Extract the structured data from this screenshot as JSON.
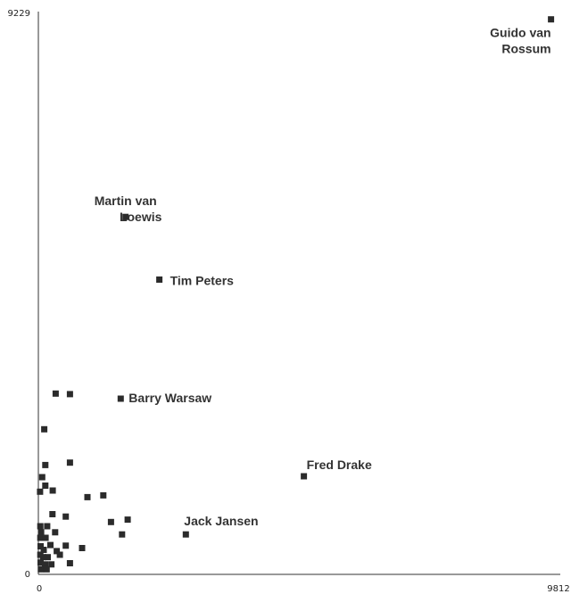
{
  "chart_data": {
    "type": "scatter",
    "title": "",
    "xlabel": "",
    "ylabel": "",
    "xlim": [
      0,
      9812
    ],
    "ylim": [
      0,
      9229
    ],
    "x_ticks": [
      "0",
      "9812"
    ],
    "y_ticks": [
      "0",
      "9229"
    ],
    "grid": false,
    "marker": "square",
    "marker_color": "#2b2b2b",
    "labeled_points": [
      {
        "label": "Guido van Rossum",
        "lines": [
          "Guido van",
          "Rossum"
        ],
        "x": 9670,
        "y": 9115
      },
      {
        "label": "Martin van Loewis",
        "lines": [
          "Martin van",
          "Loewis"
        ],
        "x": 1630,
        "y": 5855
      },
      {
        "label": "Tim Peters",
        "lines": [
          "Tim Peters"
        ],
        "x": 2270,
        "y": 4820
      },
      {
        "label": "Barry Warsaw",
        "lines": [
          "Barry Warsaw"
        ],
        "x": 1540,
        "y": 2855
      },
      {
        "label": "Fred Drake",
        "lines": [
          "Fred Drake"
        ],
        "x": 5000,
        "y": 1575
      },
      {
        "label": "Jack Jansen",
        "lines": [
          "Jack Jansen"
        ],
        "x": 2770,
        "y": 615
      }
    ],
    "points": [
      {
        "x": 310,
        "y": 2940
      },
      {
        "x": 580,
        "y": 2930
      },
      {
        "x": 95,
        "y": 2350
      },
      {
        "x": 115,
        "y": 1760
      },
      {
        "x": 580,
        "y": 1800
      },
      {
        "x": 55,
        "y": 1560
      },
      {
        "x": 115,
        "y": 1420
      },
      {
        "x": 15,
        "y": 1320
      },
      {
        "x": 255,
        "y": 1340
      },
      {
        "x": 910,
        "y": 1230
      },
      {
        "x": 1210,
        "y": 1260
      },
      {
        "x": 250,
        "y": 950
      },
      {
        "x": 500,
        "y": 910
      },
      {
        "x": 1355,
        "y": 820
      },
      {
        "x": 1670,
        "y": 860
      },
      {
        "x": 1565,
        "y": 615
      },
      {
        "x": 20,
        "y": 750
      },
      {
        "x": 150,
        "y": 750
      },
      {
        "x": 35,
        "y": 650
      },
      {
        "x": 300,
        "y": 650
      },
      {
        "x": 20,
        "y": 560
      },
      {
        "x": 70,
        "y": 560
      },
      {
        "x": 120,
        "y": 560
      },
      {
        "x": 210,
        "y": 440
      },
      {
        "x": 500,
        "y": 430
      },
      {
        "x": 810,
        "y": 390
      },
      {
        "x": 25,
        "y": 420
      },
      {
        "x": 85,
        "y": 360
      },
      {
        "x": 330,
        "y": 340
      },
      {
        "x": 390,
        "y": 280
      },
      {
        "x": 20,
        "y": 280
      },
      {
        "x": 70,
        "y": 240
      },
      {
        "x": 160,
        "y": 240
      },
      {
        "x": 25,
        "y": 150
      },
      {
        "x": 110,
        "y": 120
      },
      {
        "x": 230,
        "y": 120
      },
      {
        "x": 580,
        "y": 140
      },
      {
        "x": 30,
        "y": 40
      },
      {
        "x": 140,
        "y": 40
      }
    ]
  }
}
